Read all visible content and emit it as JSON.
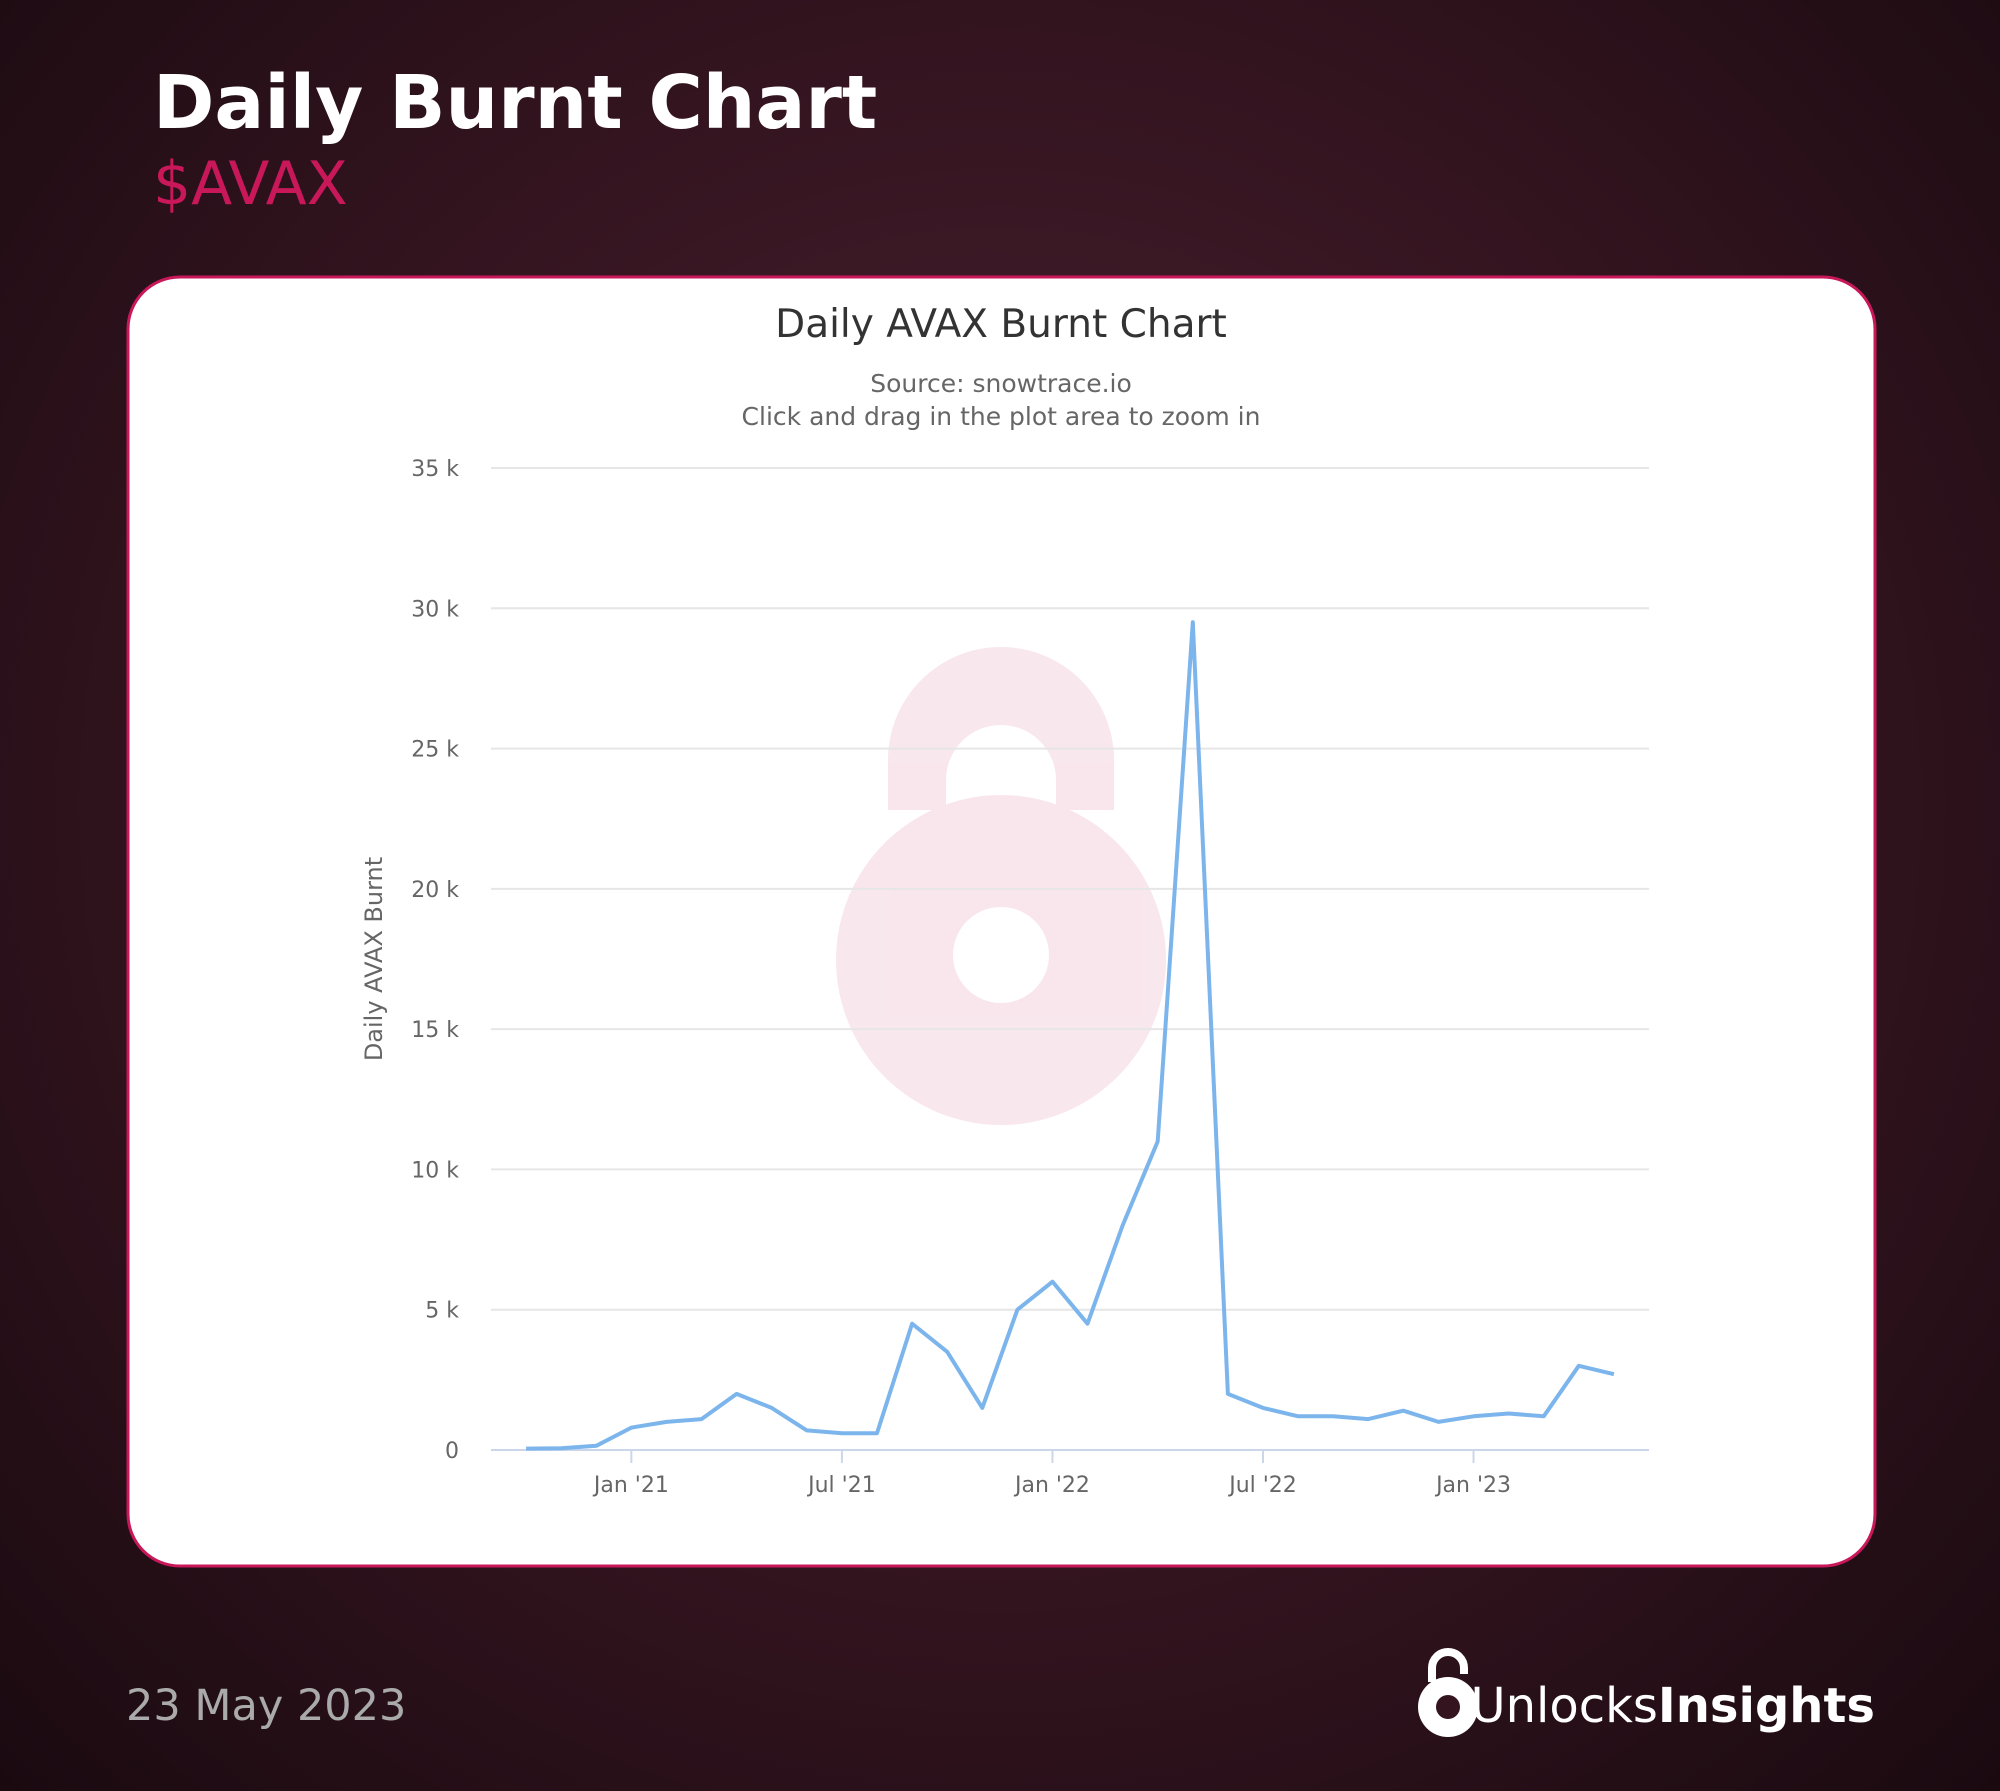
{
  "header": {
    "title": "Daily Burnt Chart",
    "subtitle": "$AVAX"
  },
  "footer": {
    "date": "23 May 2023",
    "brand_light": "Unlocks",
    "brand_bold": "Insights"
  },
  "chart_data": {
    "type": "line",
    "title": "Daily AVAX Burnt Chart",
    "subtitle": [
      "Source: snowtrace.io",
      "Click and drag in the plot area to zoom in"
    ],
    "y_label": "Daily AVAX Burnt",
    "color": "#7cb5ec",
    "grid": true,
    "x": [
      "2020-10",
      "2020-11",
      "2020-12",
      "2021-01",
      "2021-02",
      "2021-03",
      "2021-04",
      "2021-05",
      "2021-06",
      "2021-07",
      "2021-08",
      "2021-09",
      "2021-10",
      "2021-11",
      "2021-12",
      "2022-01",
      "2022-02",
      "2022-03",
      "2022-04",
      "2022-05",
      "2022-06",
      "2022-07",
      "2022-08",
      "2022-09",
      "2022-10",
      "2022-11",
      "2022-12",
      "2023-01",
      "2023-02",
      "2023-03",
      "2023-04",
      "2023-05"
    ],
    "values": [
      50,
      60,
      150,
      800,
      1000,
      1100,
      2000,
      1500,
      700,
      600,
      600,
      4500,
      3500,
      1500,
      5000,
      6000,
      4500,
      8000,
      11000,
      29500,
      2000,
      1500,
      1200,
      1200,
      1100,
      1400,
      1000,
      1200,
      1300,
      1200,
      3000,
      2700
    ],
    "xlim": [
      "2020-09",
      "2023-06"
    ],
    "xticks": [
      {
        "value": "2021-01",
        "label": "Jan '21"
      },
      {
        "value": "2021-07",
        "label": "Jul '21"
      },
      {
        "value": "2022-01",
        "label": "Jan '22"
      },
      {
        "value": "2022-07",
        "label": "Jul '22"
      },
      {
        "value": "2023-01",
        "label": "Jan '23"
      }
    ],
    "ylim": [
      0,
      35000
    ],
    "yticks": [
      0,
      {
        "value": 5000,
        "label": "5 k"
      },
      {
        "value": 10000,
        "label": "10 k"
      },
      {
        "value": 15000,
        "label": "15 k"
      },
      {
        "value": 20000,
        "label": "20 k"
      },
      {
        "value": 25000,
        "label": "25 k"
      },
      {
        "value": 30000,
        "label": "30 k"
      },
      {
        "value": 35000,
        "label": "35 k"
      }
    ]
  }
}
